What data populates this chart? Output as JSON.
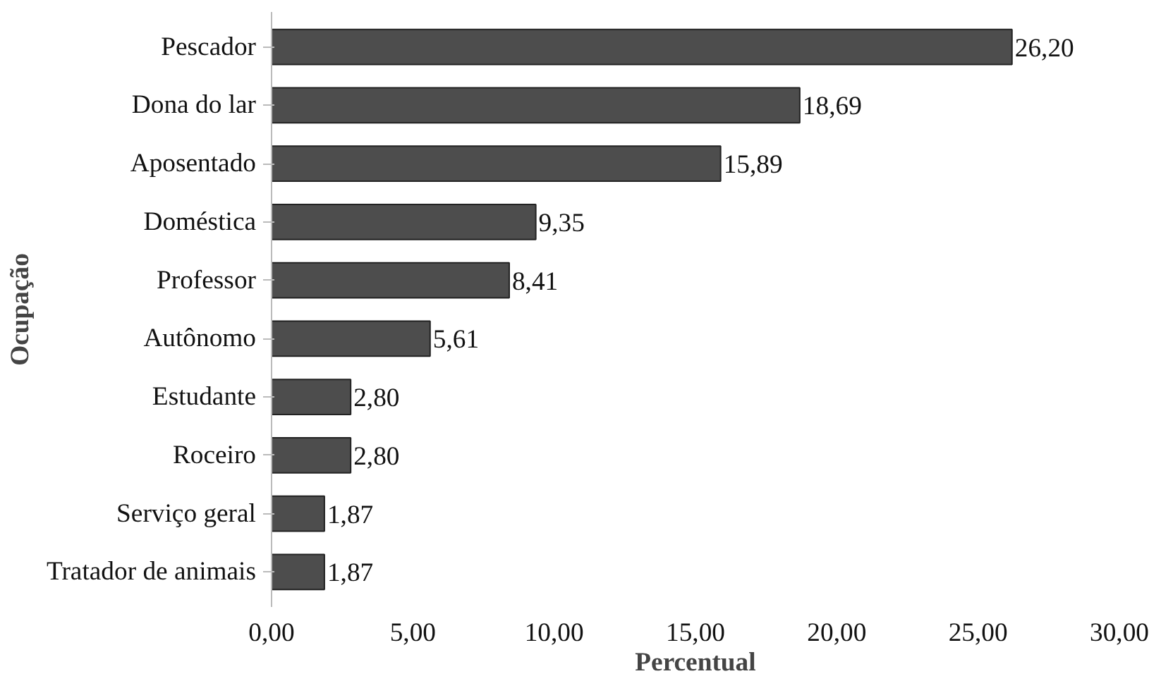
{
  "chart_data": {
    "type": "bar",
    "orientation": "horizontal",
    "xlabel": "Percentual",
    "ylabel": "Ocupação",
    "categories": [
      "Pescador",
      "Dona do lar",
      "Aposentado",
      "Doméstica",
      "Professor",
      "Autônomo",
      "Estudante",
      "Roceiro",
      "Serviço geral",
      "Tratador de animais"
    ],
    "values": [
      26.2,
      18.69,
      15.89,
      9.35,
      8.41,
      5.61,
      2.8,
      2.8,
      1.87,
      1.87
    ],
    "value_labels": [
      "26,20",
      "18,69",
      "15,89",
      "9,35",
      "8,41",
      "5,61",
      "2,80",
      "2,80",
      "1,87",
      "1,87"
    ],
    "color": "#4d4d4d",
    "xlim": [
      0,
      30
    ],
    "xticks": [
      {
        "value": 0,
        "label": "0,00"
      },
      {
        "value": 5,
        "label": "5,00"
      },
      {
        "value": 10,
        "label": "10,00"
      },
      {
        "value": 15,
        "label": "15,00"
      },
      {
        "value": 20,
        "label": "20,00"
      },
      {
        "value": 25,
        "label": "25,00"
      },
      {
        "value": 30,
        "label": "30,00"
      }
    ],
    "grid": false
  }
}
